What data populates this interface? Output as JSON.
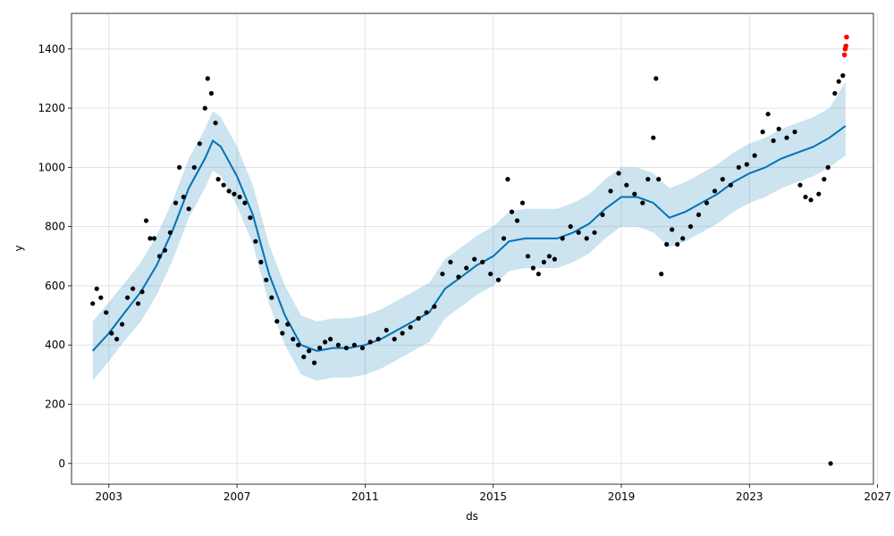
{
  "colors": {
    "actual": "#000000",
    "forecast": "#0072B2",
    "interval": "#0072B2",
    "outlier": "#ff0000",
    "grid": "#b0b0b0"
  },
  "chart_data": {
    "type": "scatter",
    "xlabel": "ds",
    "ylabel": "y",
    "xlim": [
      "2001-11-01",
      "2026-11-15"
    ],
    "ylim": [
      -70,
      1520
    ],
    "x_tick_labels": [
      "2003",
      "2007",
      "2011",
      "2015",
      "2019",
      "2023",
      "2027"
    ],
    "y_tick_labels": [
      "0",
      "200",
      "400",
      "600",
      "800",
      "1000",
      "1200",
      "1400"
    ],
    "x_ticks": [
      "2003-01-01",
      "2007-01-01",
      "2011-01-01",
      "2015-01-01",
      "2019-01-01",
      "2023-01-01",
      "2027-01-01"
    ],
    "y_ticks": [
      0,
      200,
      400,
      600,
      800,
      1000,
      1200,
      1400
    ],
    "grid": true,
    "series": [
      {
        "kind": "observed",
        "points": [
          [
            "2002-07-01",
            540
          ],
          [
            "2002-08-15",
            590
          ],
          [
            "2002-10-01",
            560
          ],
          [
            "2002-12-01",
            510
          ],
          [
            "2003-02-01",
            440
          ],
          [
            "2003-04-01",
            420
          ],
          [
            "2003-06-01",
            470
          ],
          [
            "2003-08-01",
            560
          ],
          [
            "2003-10-01",
            590
          ],
          [
            "2003-12-01",
            540
          ],
          [
            "2004-01-15",
            580
          ],
          [
            "2004-03-01",
            820
          ],
          [
            "2004-04-15",
            760
          ],
          [
            "2004-06-01",
            760
          ],
          [
            "2004-08-01",
            700
          ],
          [
            "2004-10-01",
            720
          ],
          [
            "2004-12-01",
            780
          ],
          [
            "2005-02-01",
            880
          ],
          [
            "2005-03-15",
            1000
          ],
          [
            "2005-05-01",
            900
          ],
          [
            "2005-07-01",
            860
          ],
          [
            "2005-09-01",
            1000
          ],
          [
            "2005-11-01",
            1080
          ],
          [
            "2006-01-01",
            1200
          ],
          [
            "2006-02-01",
            1300
          ],
          [
            "2006-03-15",
            1250
          ],
          [
            "2006-05-01",
            1150
          ],
          [
            "2006-06-01",
            960
          ],
          [
            "2006-08-01",
            940
          ],
          [
            "2006-10-01",
            920
          ],
          [
            "2006-12-01",
            910
          ],
          [
            "2007-02-01",
            900
          ],
          [
            "2007-04-01",
            880
          ],
          [
            "2007-06-01",
            830
          ],
          [
            "2007-08-01",
            750
          ],
          [
            "2007-10-01",
            680
          ],
          [
            "2007-12-01",
            620
          ],
          [
            "2008-02-01",
            560
          ],
          [
            "2008-04-01",
            480
          ],
          [
            "2008-06-01",
            440
          ],
          [
            "2008-08-01",
            470
          ],
          [
            "2008-10-01",
            420
          ],
          [
            "2008-12-01",
            400
          ],
          [
            "2009-02-01",
            360
          ],
          [
            "2009-04-01",
            380
          ],
          [
            "2009-06-01",
            340
          ],
          [
            "2009-08-01",
            390
          ],
          [
            "2009-10-01",
            410
          ],
          [
            "2009-12-01",
            420
          ],
          [
            "2010-03-01",
            400
          ],
          [
            "2010-06-01",
            390
          ],
          [
            "2010-09-01",
            400
          ],
          [
            "2010-12-01",
            390
          ],
          [
            "2011-03-01",
            410
          ],
          [
            "2011-06-01",
            420
          ],
          [
            "2011-09-01",
            450
          ],
          [
            "2011-12-01",
            420
          ],
          [
            "2012-03-01",
            440
          ],
          [
            "2012-06-01",
            460
          ],
          [
            "2012-09-01",
            490
          ],
          [
            "2012-12-01",
            510
          ],
          [
            "2013-03-01",
            530
          ],
          [
            "2013-06-01",
            640
          ],
          [
            "2013-09-01",
            680
          ],
          [
            "2013-12-01",
            630
          ],
          [
            "2014-03-01",
            660
          ],
          [
            "2014-06-01",
            690
          ],
          [
            "2014-09-01",
            680
          ],
          [
            "2014-12-01",
            640
          ],
          [
            "2015-03-01",
            620
          ],
          [
            "2015-05-01",
            760
          ],
          [
            "2015-06-15",
            960
          ],
          [
            "2015-08-01",
            850
          ],
          [
            "2015-10-01",
            820
          ],
          [
            "2015-12-01",
            880
          ],
          [
            "2016-02-01",
            700
          ],
          [
            "2016-04-01",
            660
          ],
          [
            "2016-06-01",
            640
          ],
          [
            "2016-08-01",
            680
          ],
          [
            "2016-10-01",
            700
          ],
          [
            "2016-12-01",
            690
          ],
          [
            "2017-03-01",
            760
          ],
          [
            "2017-06-01",
            800
          ],
          [
            "2017-09-01",
            780
          ],
          [
            "2017-12-01",
            760
          ],
          [
            "2018-03-01",
            780
          ],
          [
            "2018-06-01",
            840
          ],
          [
            "2018-09-01",
            920
          ],
          [
            "2018-12-01",
            980
          ],
          [
            "2019-03-01",
            940
          ],
          [
            "2019-06-01",
            910
          ],
          [
            "2019-09-01",
            880
          ],
          [
            "2019-11-01",
            960
          ],
          [
            "2020-01-01",
            1100
          ],
          [
            "2020-02-01",
            1300
          ],
          [
            "2020-03-01",
            960
          ],
          [
            "2020-04-01",
            640
          ],
          [
            "2020-06-01",
            740
          ],
          [
            "2020-08-01",
            790
          ],
          [
            "2020-10-01",
            740
          ],
          [
            "2020-12-01",
            760
          ],
          [
            "2021-03-01",
            800
          ],
          [
            "2021-06-01",
            840
          ],
          [
            "2021-09-01",
            880
          ],
          [
            "2021-12-01",
            920
          ],
          [
            "2022-03-01",
            960
          ],
          [
            "2022-06-01",
            940
          ],
          [
            "2022-09-01",
            1000
          ],
          [
            "2022-12-01",
            1010
          ],
          [
            "2023-03-01",
            1040
          ],
          [
            "2023-06-01",
            1120
          ],
          [
            "2023-08-01",
            1180
          ],
          [
            "2023-10-01",
            1090
          ],
          [
            "2023-12-01",
            1130
          ],
          [
            "2024-03-01",
            1100
          ],
          [
            "2024-06-01",
            1120
          ],
          [
            "2024-08-01",
            940
          ],
          [
            "2024-10-01",
            900
          ],
          [
            "2024-12-01",
            890
          ],
          [
            "2025-03-01",
            910
          ],
          [
            "2025-05-01",
            960
          ],
          [
            "2025-06-15",
            1000
          ],
          [
            "2025-07-15",
            0
          ],
          [
            "2025-09-01",
            1250
          ],
          [
            "2025-10-15",
            1290
          ],
          [
            "2025-12-01",
            1310
          ]
        ]
      },
      {
        "kind": "forecast",
        "points": [
          [
            "2002-07-01",
            380
          ],
          [
            "2003-01-01",
            440
          ],
          [
            "2003-07-01",
            510
          ],
          [
            "2004-01-01",
            580
          ],
          [
            "2004-07-01",
            670
          ],
          [
            "2005-01-01",
            790
          ],
          [
            "2005-07-01",
            930
          ],
          [
            "2006-01-01",
            1030
          ],
          [
            "2006-04-01",
            1090
          ],
          [
            "2006-07-01",
            1070
          ],
          [
            "2007-01-01",
            970
          ],
          [
            "2007-07-01",
            840
          ],
          [
            "2008-01-01",
            640
          ],
          [
            "2008-07-01",
            500
          ],
          [
            "2009-01-01",
            400
          ],
          [
            "2009-07-01",
            380
          ],
          [
            "2010-01-01",
            390
          ],
          [
            "2010-07-01",
            390
          ],
          [
            "2011-01-01",
            400
          ],
          [
            "2011-07-01",
            420
          ],
          [
            "2012-01-01",
            450
          ],
          [
            "2012-07-01",
            480
          ],
          [
            "2013-01-01",
            510
          ],
          [
            "2013-07-01",
            590
          ],
          [
            "2014-01-01",
            630
          ],
          [
            "2014-07-01",
            670
          ],
          [
            "2015-01-01",
            700
          ],
          [
            "2015-07-01",
            750
          ],
          [
            "2016-01-01",
            760
          ],
          [
            "2016-07-01",
            760
          ],
          [
            "2017-01-01",
            760
          ],
          [
            "2017-07-01",
            780
          ],
          [
            "2018-01-01",
            810
          ],
          [
            "2018-07-01",
            860
          ],
          [
            "2019-01-01",
            900
          ],
          [
            "2019-07-01",
            900
          ],
          [
            "2020-01-01",
            880
          ],
          [
            "2020-07-01",
            830
          ],
          [
            "2021-01-01",
            850
          ],
          [
            "2021-07-01",
            880
          ],
          [
            "2022-01-01",
            910
          ],
          [
            "2022-07-01",
            950
          ],
          [
            "2023-01-01",
            980
          ],
          [
            "2023-07-01",
            1000
          ],
          [
            "2024-01-01",
            1030
          ],
          [
            "2024-07-01",
            1050
          ],
          [
            "2025-01-01",
            1070
          ],
          [
            "2025-07-01",
            1100
          ],
          [
            "2026-01-01",
            1140
          ]
        ]
      },
      {
        "kind": "interval",
        "points": [
          [
            "2002-07-01",
            280,
            480
          ],
          [
            "2003-01-01",
            345,
            545
          ],
          [
            "2003-07-01",
            415,
            610
          ],
          [
            "2004-01-01",
            480,
            680
          ],
          [
            "2004-07-01",
            570,
            770
          ],
          [
            "2005-01-01",
            690,
            890
          ],
          [
            "2005-07-01",
            830,
            1030
          ],
          [
            "2006-01-01",
            930,
            1130
          ],
          [
            "2006-04-01",
            990,
            1190
          ],
          [
            "2006-07-01",
            970,
            1170
          ],
          [
            "2007-01-01",
            870,
            1070
          ],
          [
            "2007-07-01",
            740,
            940
          ],
          [
            "2008-01-01",
            540,
            740
          ],
          [
            "2008-07-01",
            400,
            600
          ],
          [
            "2009-01-01",
            300,
            500
          ],
          [
            "2009-07-01",
            280,
            480
          ],
          [
            "2010-01-01",
            290,
            490
          ],
          [
            "2010-07-01",
            290,
            490
          ],
          [
            "2011-01-01",
            300,
            500
          ],
          [
            "2011-07-01",
            320,
            520
          ],
          [
            "2012-01-01",
            350,
            550
          ],
          [
            "2012-07-01",
            380,
            580
          ],
          [
            "2013-01-01",
            410,
            610
          ],
          [
            "2013-07-01",
            490,
            690
          ],
          [
            "2014-01-01",
            530,
            730
          ],
          [
            "2014-07-01",
            570,
            770
          ],
          [
            "2015-01-01",
            600,
            800
          ],
          [
            "2015-07-01",
            650,
            850
          ],
          [
            "2016-01-01",
            660,
            860
          ],
          [
            "2016-07-01",
            660,
            860
          ],
          [
            "2017-01-01",
            660,
            860
          ],
          [
            "2017-07-01",
            680,
            880
          ],
          [
            "2018-01-01",
            710,
            910
          ],
          [
            "2018-07-01",
            760,
            960
          ],
          [
            "2019-01-01",
            800,
            1000
          ],
          [
            "2019-07-01",
            800,
            1000
          ],
          [
            "2020-01-01",
            780,
            980
          ],
          [
            "2020-07-01",
            730,
            930
          ],
          [
            "2021-01-01",
            750,
            950
          ],
          [
            "2021-07-01",
            780,
            980
          ],
          [
            "2022-01-01",
            810,
            1010
          ],
          [
            "2022-07-01",
            850,
            1050
          ],
          [
            "2023-01-01",
            880,
            1080
          ],
          [
            "2023-07-01",
            900,
            1100
          ],
          [
            "2024-01-01",
            930,
            1130
          ],
          [
            "2024-07-01",
            950,
            1150
          ],
          [
            "2025-01-01",
            970,
            1170
          ],
          [
            "2025-07-01",
            1000,
            1200
          ],
          [
            "2026-01-01",
            1040,
            1290
          ]
        ]
      },
      {
        "kind": "outliers",
        "points": [
          [
            "2025-12-20",
            1380
          ],
          [
            "2025-12-28",
            1400
          ],
          [
            "2026-01-05",
            1410
          ],
          [
            "2026-01-12",
            1440
          ]
        ]
      }
    ]
  }
}
